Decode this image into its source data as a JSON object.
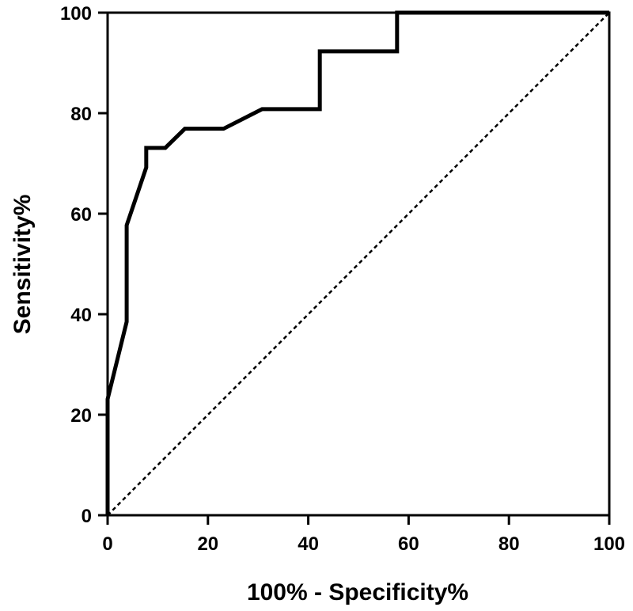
{
  "chart_data": {
    "type": "line",
    "title": "",
    "xlabel": "100% - Specificity%",
    "ylabel": "Sensitivity%",
    "xlim": [
      0,
      100
    ],
    "ylim": [
      0,
      100
    ],
    "xticks": [
      0,
      20,
      40,
      60,
      80,
      100
    ],
    "yticks": [
      0,
      20,
      40,
      60,
      80,
      100
    ],
    "x_tick_labels": [
      "0",
      "20",
      "40",
      "60",
      "80",
      "100"
    ],
    "y_tick_labels": [
      "0",
      "20",
      "40",
      "60",
      "80",
      "100"
    ],
    "grid": false,
    "legend": "none",
    "series": [
      {
        "style": "solid",
        "color": "#000000",
        "points": [
          {
            "x": 0,
            "y": 0
          },
          {
            "x": 0,
            "y": 23.1
          },
          {
            "x": 3.8,
            "y": 38.5
          },
          {
            "x": 3.8,
            "y": 57.7
          },
          {
            "x": 7.7,
            "y": 69.2
          },
          {
            "x": 7.7,
            "y": 73.1
          },
          {
            "x": 11.5,
            "y": 73.1
          },
          {
            "x": 15.4,
            "y": 76.9
          },
          {
            "x": 23.1,
            "y": 76.9
          },
          {
            "x": 30.8,
            "y": 80.8
          },
          {
            "x": 42.3,
            "y": 80.8
          },
          {
            "x": 42.3,
            "y": 92.3
          },
          {
            "x": 57.7,
            "y": 92.3
          },
          {
            "x": 57.7,
            "y": 100
          },
          {
            "x": 100,
            "y": 100
          }
        ]
      },
      {
        "style": "dotted",
        "color": "#000000",
        "points": [
          {
            "x": 0,
            "y": 0
          },
          {
            "x": 100,
            "y": 100
          }
        ]
      }
    ]
  }
}
